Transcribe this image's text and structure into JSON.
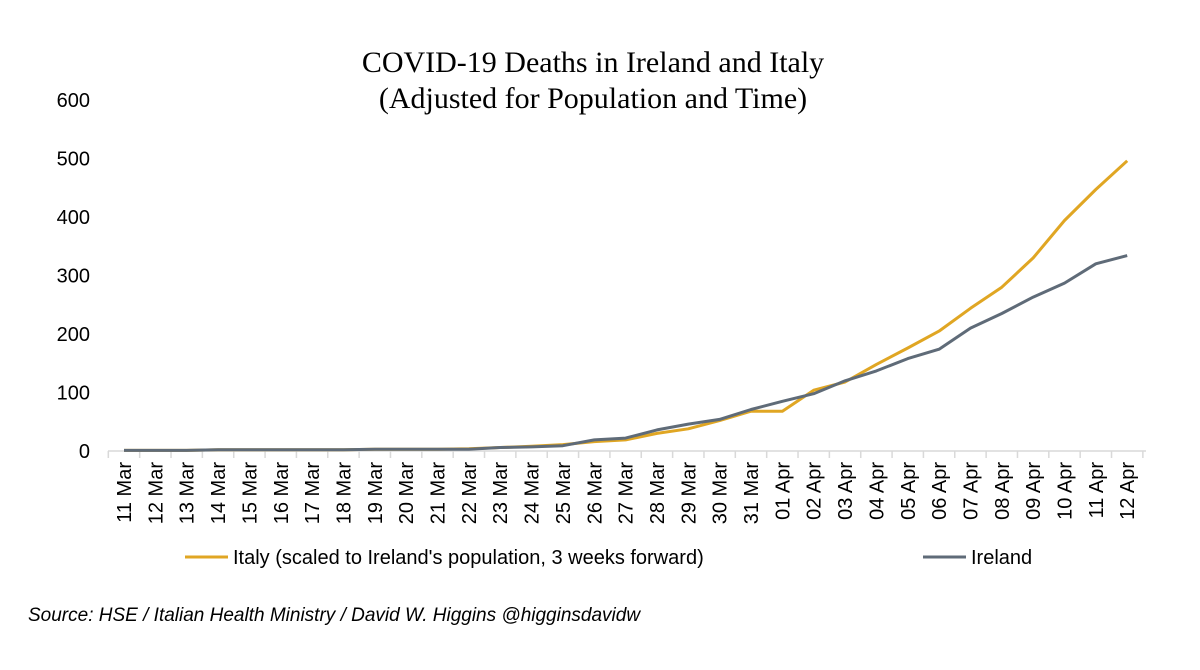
{
  "chart_data": {
    "type": "line",
    "title": [
      "COVID-19 Deaths in Ireland and Italy",
      "(Adjusted for Population and Time)"
    ],
    "categories": [
      "11 Mar",
      "12 Mar",
      "13 Mar",
      "14 Mar",
      "15 Mar",
      "16 Mar",
      "17 Mar",
      "18 Mar",
      "19 Mar",
      "20 Mar",
      "21 Mar",
      "22 Mar",
      "23 Mar",
      "24 Mar",
      "25 Mar",
      "26 Mar",
      "27 Mar",
      "28 Mar",
      "29 Mar",
      "30 Mar",
      "31 Mar",
      "01 Apr",
      "02 Apr",
      "03 Apr",
      "04 Apr",
      "05 Apr",
      "06 Apr",
      "07 Apr",
      "08 Apr",
      "09 Apr",
      "10 Apr",
      "11 Apr",
      "12 Apr"
    ],
    "series": [
      {
        "name": "Italy (scaled to Ireland's population, 3 weeks forward)",
        "color": "#e0a623",
        "values": [
          1,
          1,
          1,
          2,
          2,
          2,
          2,
          2,
          3,
          3,
          3,
          4,
          6,
          8,
          11,
          16,
          19,
          30,
          38,
          52,
          68,
          68,
          104,
          118,
          148,
          176,
          205,
          244,
          280,
          330,
          394,
          447,
          496
        ]
      },
      {
        "name": "Ireland",
        "color": "#5f6b78",
        "values": [
          1,
          1,
          1,
          2,
          2,
          2,
          2,
          2,
          3,
          3,
          3,
          3,
          6,
          7,
          9,
          19,
          22,
          36,
          46,
          54,
          71,
          85,
          98,
          120,
          137,
          158,
          174,
          210,
          235,
          263,
          287,
          320,
          334
        ]
      }
    ],
    "ylim": [
      0,
      600
    ],
    "yticks": [
      0,
      100,
      200,
      300,
      400,
      500,
      600
    ],
    "grid": false,
    "legend_position": "bottom"
  },
  "source_text": "Source: HSE / Italian Health Ministry / David W. Higgins @higginsdavidw"
}
